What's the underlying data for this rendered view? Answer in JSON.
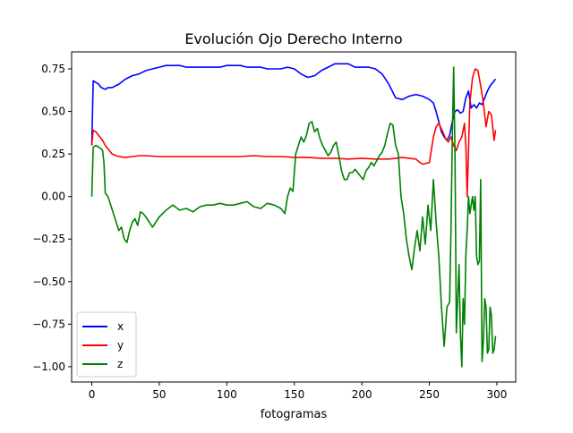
{
  "chart_data": {
    "type": "line",
    "title": "Evolución Ojo Derecho Interno",
    "xlabel": "fotogramas",
    "ylabel": "",
    "xlim": [
      -14.95,
      313.95
    ],
    "ylim": [
      -1.09,
      0.85
    ],
    "xticks": [
      0,
      50,
      100,
      150,
      200,
      250,
      300
    ],
    "xtick_labels": [
      "0",
      "50",
      "100",
      "150",
      "200",
      "250",
      "300"
    ],
    "yticks": [
      -1.0,
      -0.75,
      -0.5,
      -0.25,
      0.0,
      0.25,
      0.5,
      0.75
    ],
    "ytick_labels": [
      "−1.00",
      "−0.75",
      "−0.50",
      "−0.25",
      "0.00",
      "0.25",
      "0.50",
      "0.75"
    ],
    "grid": false,
    "legend_position": "lower-left",
    "series": [
      {
        "name": "x",
        "color": "#0000ff",
        "x": [
          0,
          1,
          3,
          5,
          7,
          10,
          12,
          15,
          20,
          25,
          30,
          35,
          40,
          45,
          50,
          55,
          60,
          65,
          70,
          75,
          80,
          85,
          90,
          95,
          100,
          105,
          110,
          115,
          120,
          125,
          130,
          135,
          140,
          145,
          150,
          155,
          160,
          165,
          170,
          175,
          180,
          185,
          190,
          195,
          200,
          205,
          210,
          215,
          220,
          225,
          230,
          235,
          240,
          245,
          250,
          253,
          255,
          257,
          259,
          261,
          263,
          265,
          267,
          269,
          271,
          273,
          275,
          277,
          279,
          281,
          283,
          285,
          287,
          289,
          291,
          293,
          295,
          297,
          299
        ],
        "y": [
          0.3,
          0.68,
          0.67,
          0.66,
          0.64,
          0.63,
          0.64,
          0.64,
          0.66,
          0.69,
          0.71,
          0.72,
          0.74,
          0.75,
          0.76,
          0.77,
          0.77,
          0.77,
          0.76,
          0.76,
          0.76,
          0.76,
          0.76,
          0.76,
          0.77,
          0.77,
          0.77,
          0.76,
          0.76,
          0.76,
          0.75,
          0.75,
          0.75,
          0.76,
          0.75,
          0.72,
          0.7,
          0.71,
          0.74,
          0.76,
          0.78,
          0.78,
          0.78,
          0.76,
          0.76,
          0.76,
          0.75,
          0.72,
          0.66,
          0.58,
          0.57,
          0.59,
          0.6,
          0.59,
          0.57,
          0.55,
          0.5,
          0.44,
          0.38,
          0.35,
          0.33,
          0.36,
          0.44,
          0.5,
          0.51,
          0.49,
          0.5,
          0.58,
          0.62,
          0.52,
          0.54,
          0.52,
          0.55,
          0.54,
          0.58,
          0.62,
          0.65,
          0.67,
          0.69
        ]
      },
      {
        "name": "y",
        "color": "#ff0000",
        "x": [
          0,
          1,
          3,
          5,
          8,
          10,
          12,
          15,
          18,
          20,
          25,
          30,
          35,
          40,
          50,
          60,
          70,
          80,
          90,
          100,
          110,
          120,
          130,
          140,
          150,
          160,
          170,
          180,
          190,
          200,
          210,
          220,
          225,
          230,
          235,
          240,
          243,
          245,
          250,
          253,
          255,
          257,
          260,
          262,
          264,
          266,
          268,
          270,
          272,
          274,
          276,
          277,
          278,
          280,
          282,
          284,
          286,
          288,
          290,
          292,
          294,
          296,
          298,
          299
        ],
        "y": [
          0.3,
          0.39,
          0.38,
          0.36,
          0.33,
          0.3,
          0.28,
          0.25,
          0.24,
          0.235,
          0.23,
          0.235,
          0.24,
          0.24,
          0.235,
          0.235,
          0.235,
          0.235,
          0.235,
          0.235,
          0.235,
          0.24,
          0.235,
          0.235,
          0.23,
          0.23,
          0.225,
          0.225,
          0.22,
          0.225,
          0.22,
          0.22,
          0.225,
          0.23,
          0.225,
          0.22,
          0.2,
          0.19,
          0.2,
          0.35,
          0.41,
          0.43,
          0.38,
          0.34,
          0.32,
          0.35,
          0.3,
          0.27,
          0.32,
          0.35,
          0.43,
          0.3,
          0.0,
          0.55,
          0.7,
          0.75,
          0.74,
          0.65,
          0.55,
          0.41,
          0.5,
          0.48,
          0.33,
          0.39
        ]
      },
      {
        "name": "z",
        "color": "#008000",
        "x": [
          0,
          1,
          3,
          5,
          7,
          8,
          9,
          10,
          12,
          14,
          16,
          18,
          20,
          22,
          24,
          26,
          28,
          30,
          32,
          34,
          36,
          38,
          40,
          45,
          50,
          55,
          60,
          65,
          70,
          75,
          80,
          85,
          90,
          95,
          100,
          105,
          110,
          115,
          120,
          125,
          130,
          135,
          140,
          141,
          143,
          145,
          147,
          149,
          151,
          153,
          155,
          157,
          159,
          161,
          163,
          165,
          167,
          169,
          171,
          173,
          175,
          177,
          179,
          181,
          183,
          185,
          187,
          189,
          191,
          193,
          195,
          197,
          199,
          201,
          203,
          205,
          207,
          209,
          211,
          213,
          215,
          217,
          219,
          221,
          223,
          225,
          227,
          229,
          231,
          233,
          235,
          237,
          239,
          241,
          243,
          245,
          247,
          249,
          251,
          253,
          255,
          257,
          259,
          261,
          263,
          265,
          266,
          267,
          268,
          269,
          270,
          271,
          272,
          273,
          274,
          275,
          276,
          277,
          278,
          279,
          280,
          281,
          282,
          283,
          284,
          285,
          286,
          287,
          288,
          289,
          290,
          291,
          292,
          293,
          294,
          295,
          296,
          297,
          298,
          299
        ],
        "y": [
          0.0,
          0.29,
          0.3,
          0.29,
          0.28,
          0.27,
          0.2,
          0.02,
          0.0,
          -0.05,
          -0.1,
          -0.15,
          -0.2,
          -0.18,
          -0.25,
          -0.27,
          -0.2,
          -0.15,
          -0.13,
          -0.17,
          -0.09,
          -0.1,
          -0.12,
          -0.18,
          -0.12,
          -0.08,
          -0.05,
          -0.08,
          -0.07,
          -0.09,
          -0.06,
          -0.05,
          -0.05,
          -0.04,
          -0.05,
          -0.05,
          -0.04,
          -0.03,
          -0.06,
          -0.07,
          -0.04,
          -0.05,
          -0.07,
          -0.08,
          -0.1,
          0.0,
          0.05,
          0.03,
          0.25,
          0.3,
          0.35,
          0.32,
          0.36,
          0.43,
          0.44,
          0.38,
          0.4,
          0.34,
          0.3,
          0.27,
          0.24,
          0.26,
          0.3,
          0.32,
          0.24,
          0.15,
          0.1,
          0.1,
          0.14,
          0.14,
          0.16,
          0.14,
          0.12,
          0.1,
          0.15,
          0.17,
          0.2,
          0.18,
          0.21,
          0.24,
          0.26,
          0.3,
          0.37,
          0.43,
          0.42,
          0.3,
          0.25,
          0.0,
          -0.1,
          -0.25,
          -0.35,
          -0.43,
          -0.3,
          -0.2,
          -0.32,
          -0.12,
          -0.28,
          -0.05,
          -0.2,
          0.1,
          -0.15,
          -0.35,
          -0.65,
          -0.88,
          -0.65,
          -0.62,
          -0.2,
          0.35,
          0.76,
          0.25,
          -0.8,
          -0.6,
          -0.4,
          -0.8,
          -1.0,
          -0.6,
          -0.75,
          -0.35,
          -0.2,
          0.0,
          -0.1,
          -0.05,
          0.0,
          -0.08,
          0.0,
          -0.35,
          -0.4,
          -0.38,
          0.1,
          -0.97,
          -0.85,
          -0.6,
          -0.65,
          -0.92,
          -0.9,
          -0.65,
          -0.7,
          -0.92,
          -0.9,
          -0.82
        ]
      }
    ]
  }
}
